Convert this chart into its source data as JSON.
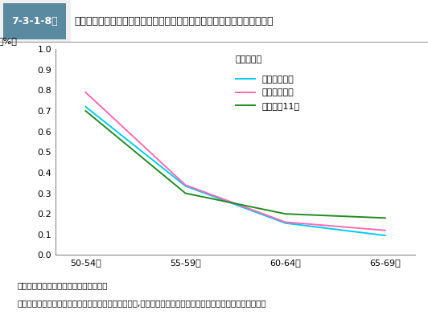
{
  "title": "調査対象者の出生年別・各年齢層において２回以上の犯歴がある者の比率",
  "figure_label": "7-3-1-8図",
  "ylabel_units": "（%）",
  "legend_title": "（出生年）",
  "x_labels": [
    "50-54歳",
    "55-59歳",
    "60-64歳",
    "65-69歳"
  ],
  "x_positions": [
    0,
    1,
    2,
    3
  ],
  "series": [
    {
      "label": "昭和３～５年",
      "color": "#00CCEE",
      "values": [
        0.72,
        0.335,
        0.155,
        0.095
      ]
    },
    {
      "label": "昭和６～８年",
      "color": "#FF69B4",
      "values": [
        0.79,
        0.34,
        0.16,
        0.12
      ]
    },
    {
      "label": "昭和９～11年",
      "color": "#228B22",
      "values": [
        0.7,
        0.3,
        0.2,
        0.18
      ]
    }
  ],
  "ylim": [
    0.0,
    1.0
  ],
  "yticks": [
    0.0,
    0.1,
    0.2,
    0.3,
    0.4,
    0.5,
    0.6,
    0.7,
    0.8,
    0.9,
    1.0
  ],
  "note1": "注　１　法務総合研究所の調査による。",
  "note2": "　　２　各年齢層において２回以上の犯歴がある者が,各年次に生まれた調査対象者総数に占める比率である。",
  "header_bg": "#5a8a9f",
  "header_text_color": "#ffffff",
  "header_border": "#cccccc",
  "background_color": "#ffffff"
}
